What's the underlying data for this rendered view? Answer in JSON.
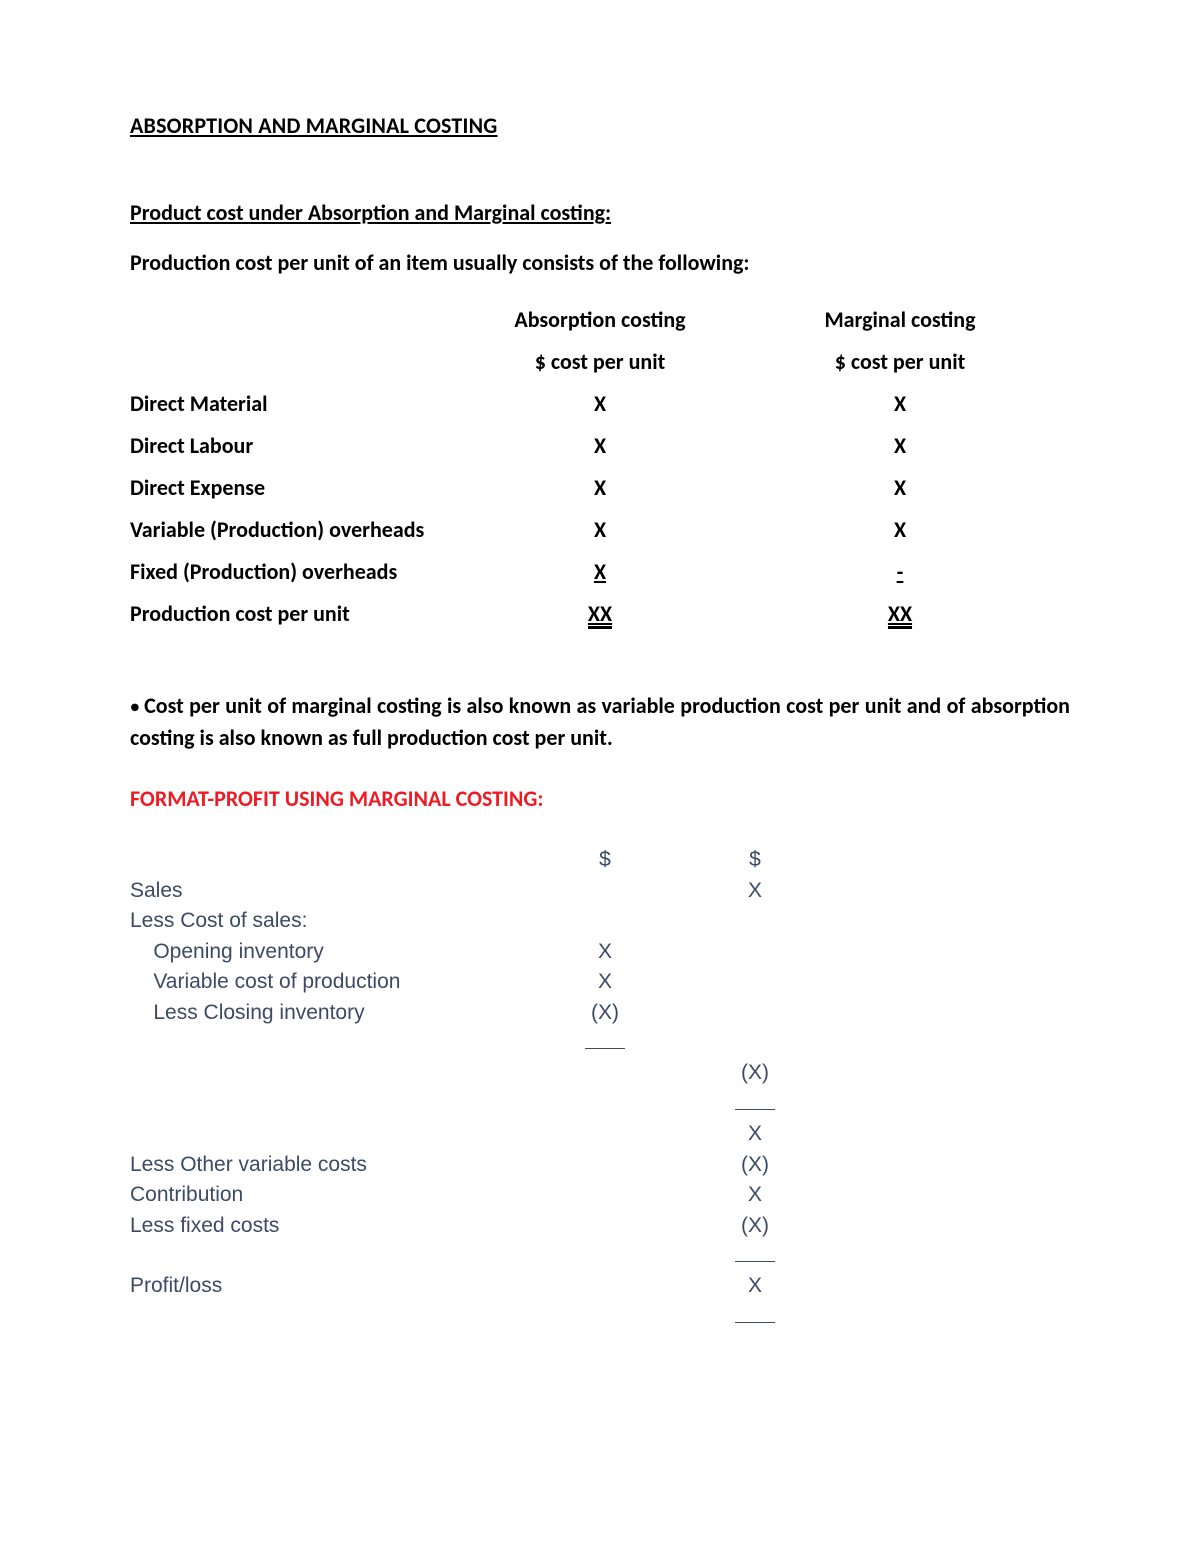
{
  "colors": {
    "page_bg": "#ffffff",
    "text": "#000000",
    "red": "#ed1c24",
    "slate": "#3b4a66"
  },
  "typography": {
    "body_font": "Calibri",
    "body_size_pt": 11,
    "fmt_font": "Arial",
    "bold_weight": 700
  },
  "title": "ABSORPTION AND MARGINAL COSTING",
  "section1": {
    "heading": "Product cost under Absorption and Marginal costing:",
    "intro": "Production cost per unit of an item usually consists of the following:",
    "col_headers": [
      "Absorption costing",
      "Marginal costing"
    ],
    "col_subheaders": [
      "$ cost per unit",
      "$ cost per unit"
    ],
    "rows": [
      {
        "label": "Direct Material",
        "v1": "X",
        "v2": "X",
        "style1": "plain",
        "style2": "plain"
      },
      {
        "label": "Direct Labour",
        "v1": "X",
        "v2": "X",
        "style1": "plain",
        "style2": "plain"
      },
      {
        "label": "Direct Expense",
        "v1": "X",
        "v2": "X",
        "style1": "plain",
        "style2": "plain"
      },
      {
        "label": "Variable (Production) overheads",
        "v1": "X",
        "v2": "X",
        "style1": "plain",
        "style2": "plain"
      },
      {
        "label": "Fixed (Production) overheads",
        "v1": "X",
        "v2": "-",
        "style1": "underline",
        "style2": "dash"
      },
      {
        "label": "Production cost per unit",
        "v1": "XX",
        "v2": "XX",
        "style1": "double",
        "style2": "double"
      }
    ]
  },
  "note_bullet": "Cost per unit of marginal costing is also known as variable production cost per unit and of absorption costing is also known as full production cost per unit.",
  "red_heading": "FORMAT-PROFIT USING MARGINAL COSTING:",
  "format_table": {
    "header": [
      "$",
      "$"
    ],
    "rows": [
      [
        "Sales",
        "",
        "X"
      ],
      [
        "Less Cost of sales:",
        "",
        ""
      ],
      [
        "    Opening inventory",
        "X",
        ""
      ],
      [
        "    Variable cost of production",
        "X",
        ""
      ],
      [
        "    Less Closing inventory",
        "(X)",
        ""
      ],
      [
        "",
        "__",
        ""
      ],
      [
        "",
        "",
        "(X)"
      ],
      [
        "",
        "",
        "__"
      ],
      [
        "",
        "",
        "X"
      ],
      [
        "Less Other variable costs",
        "",
        "(X)"
      ],
      [
        "Contribution",
        "",
        "X"
      ],
      [
        "Less fixed costs",
        "",
        "(X)"
      ],
      [
        "",
        "",
        "__"
      ],
      [
        "Profit/loss",
        "",
        "X"
      ],
      [
        "",
        "",
        "__"
      ]
    ]
  }
}
